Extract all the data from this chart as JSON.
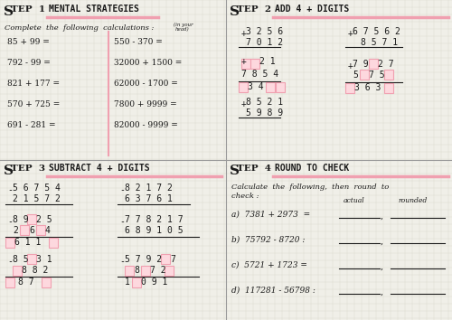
{
  "bg": "#f0efe8",
  "grid_color": "#d8d8cc",
  "pink": "#f0a0b0",
  "pink_fill": "#fdd8de",
  "dark": "#1a1a1a",
  "step1": {
    "title": "MENTAL STRATEGIES",
    "left_calcs": [
      "85 + 99 =",
      "792 - 99 =",
      "821 + 177 =",
      "570 + 725 =",
      "691 - 281 ="
    ],
    "right_calcs": [
      "550 - 370 =",
      "32000 + 1500 =",
      "62000 - 1700 =",
      "7800 + 9999 =",
      "82000 - 9999 ="
    ]
  },
  "step2": {
    "title": "ADD 4 + DIGITS"
  },
  "step3": {
    "title": "SUBTRACT 4 + DIGITS"
  },
  "step4": {
    "title": "ROUND TO CHECK",
    "problems": [
      "a)  7381 + 2973  =",
      "b)  75792 - 8720 :",
      "c)  5721 + 1723 =",
      "d)  117281 - 56798 :"
    ]
  }
}
